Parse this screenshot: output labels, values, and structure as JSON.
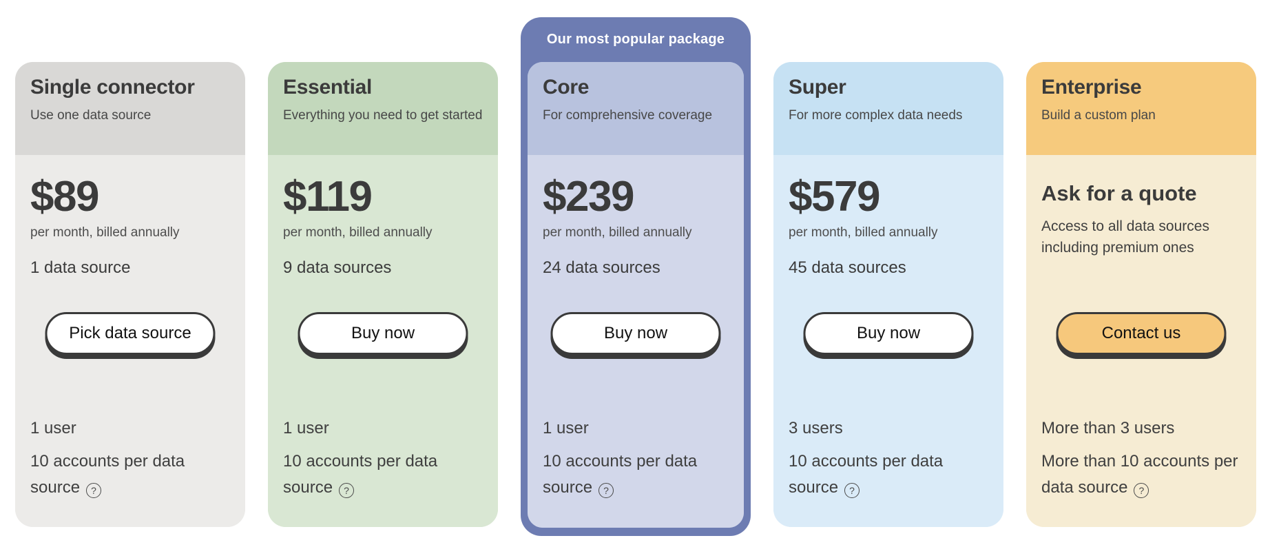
{
  "palette": {
    "page_bg": "#ffffff",
    "text_dark": "#3b3b3b",
    "text_body": "#474747",
    "button_border": "#3a3a3a",
    "button_bg_default": "#ffffff",
    "popular_accent": "#6d7cb2"
  },
  "popular_badge": "Our most popular package",
  "help_icon_glyph": "?",
  "plans": [
    {
      "name": "Single connector",
      "tagline": "Use one data source",
      "price": "$89",
      "billing_note": "per month, billed annually",
      "sources": "1 data source",
      "button_label": "Pick data source",
      "feature_1": "1 user",
      "feature_2": "10 accounts per data source",
      "colors": {
        "header": "#d9d8d6",
        "body": "#ecebe9"
      }
    },
    {
      "name": "Essential",
      "tagline": "Everything you need to get started",
      "price": "$119",
      "billing_note": "per month, billed annually",
      "sources": "9 data sources",
      "button_label": "Buy now",
      "feature_1": "1 user",
      "feature_2": "10 accounts per data source",
      "colors": {
        "header": "#c3d8bc",
        "body": "#d9e7d3"
      }
    },
    {
      "name": "Core",
      "tagline": "For comprehensive coverage",
      "price": "$239",
      "billing_note": "per month, billed annually",
      "sources": "24 data sources",
      "button_label": "Buy now",
      "feature_1": "1 user",
      "feature_2": "10 accounts per data source",
      "popular": true,
      "colors": {
        "header": "#b8c2de",
        "body": "#d2d7ea",
        "wrapper": "#6d7cb2"
      }
    },
    {
      "name": "Super",
      "tagline": "For more complex data needs",
      "price": "$579",
      "billing_note": "per month, billed annually",
      "sources": "45 data sources",
      "button_label": "Buy now",
      "feature_1": "3 users",
      "feature_2": "10 accounts per data source",
      "colors": {
        "header": "#c6e1f3",
        "body": "#daebf8"
      }
    },
    {
      "name": "Enterprise",
      "tagline": "Build a custom plan",
      "quote_heading": "Ask for a quote",
      "quote_description": "Access to all data sources including premium ones",
      "button_label": "Contact us",
      "feature_1": "More than 3 users",
      "feature_2": "More than 10 accounts per data source",
      "colors": {
        "header": "#f6ca7d",
        "body": "#f6ecd3",
        "button_bg": "#f6c87c"
      }
    }
  ]
}
